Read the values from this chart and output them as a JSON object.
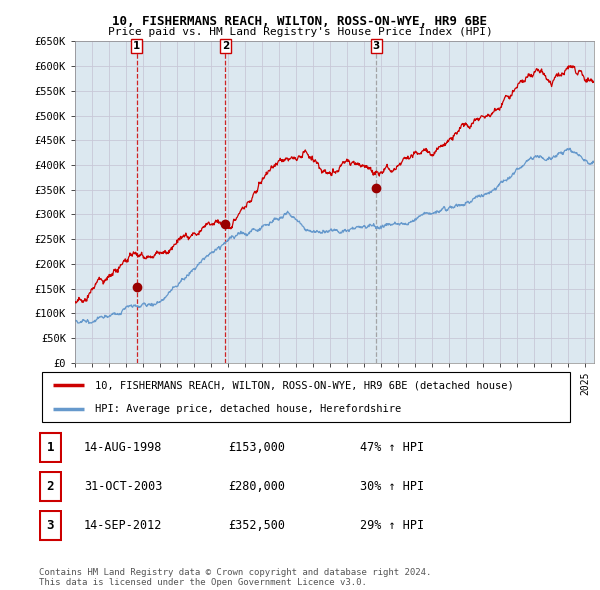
{
  "title_line1": "10, FISHERMANS REACH, WILTON, ROSS-ON-WYE, HR9 6BE",
  "title_line2": "Price paid vs. HM Land Registry's House Price Index (HPI)",
  "background_color": "#ffffff",
  "grid_color": "#c8c8d8",
  "plot_bg_color": "#dce8f0",
  "red_line_color": "#cc0000",
  "blue_line_color": "#6699cc",
  "sale_marker_color": "#990000",
  "ylim": [
    0,
    650000
  ],
  "yticks": [
    0,
    50000,
    100000,
    150000,
    200000,
    250000,
    300000,
    350000,
    400000,
    450000,
    500000,
    550000,
    600000,
    650000
  ],
  "ytick_labels": [
    "£0",
    "£50K",
    "£100K",
    "£150K",
    "£200K",
    "£250K",
    "£300K",
    "£350K",
    "£400K",
    "£450K",
    "£500K",
    "£550K",
    "£600K",
    "£650K"
  ],
  "sales": [
    {
      "date_num": 1998.62,
      "price": 153000,
      "label": "1",
      "date_str": "14-AUG-1998",
      "price_str": "£153,000",
      "hpi_str": "47% ↑ HPI",
      "vline_color": "#cc0000",
      "vline_style": "--"
    },
    {
      "date_num": 2003.83,
      "price": 280000,
      "label": "2",
      "date_str": "31-OCT-2003",
      "price_str": "£280,000",
      "hpi_str": "30% ↑ HPI",
      "vline_color": "#cc0000",
      "vline_style": "--"
    },
    {
      "date_num": 2012.71,
      "price": 352500,
      "label": "3",
      "date_str": "14-SEP-2012",
      "price_str": "£352,500",
      "hpi_str": "29% ↑ HPI",
      "vline_color": "#999999",
      "vline_style": "--"
    }
  ],
  "legend_red_label": "10, FISHERMANS REACH, WILTON, ROSS-ON-WYE, HR9 6BE (detached house)",
  "legend_blue_label": "HPI: Average price, detached house, Herefordshire",
  "footnote": "Contains HM Land Registry data © Crown copyright and database right 2024.\nThis data is licensed under the Open Government Licence v3.0.",
  "xmin": 1995.0,
  "xmax": 2025.5
}
